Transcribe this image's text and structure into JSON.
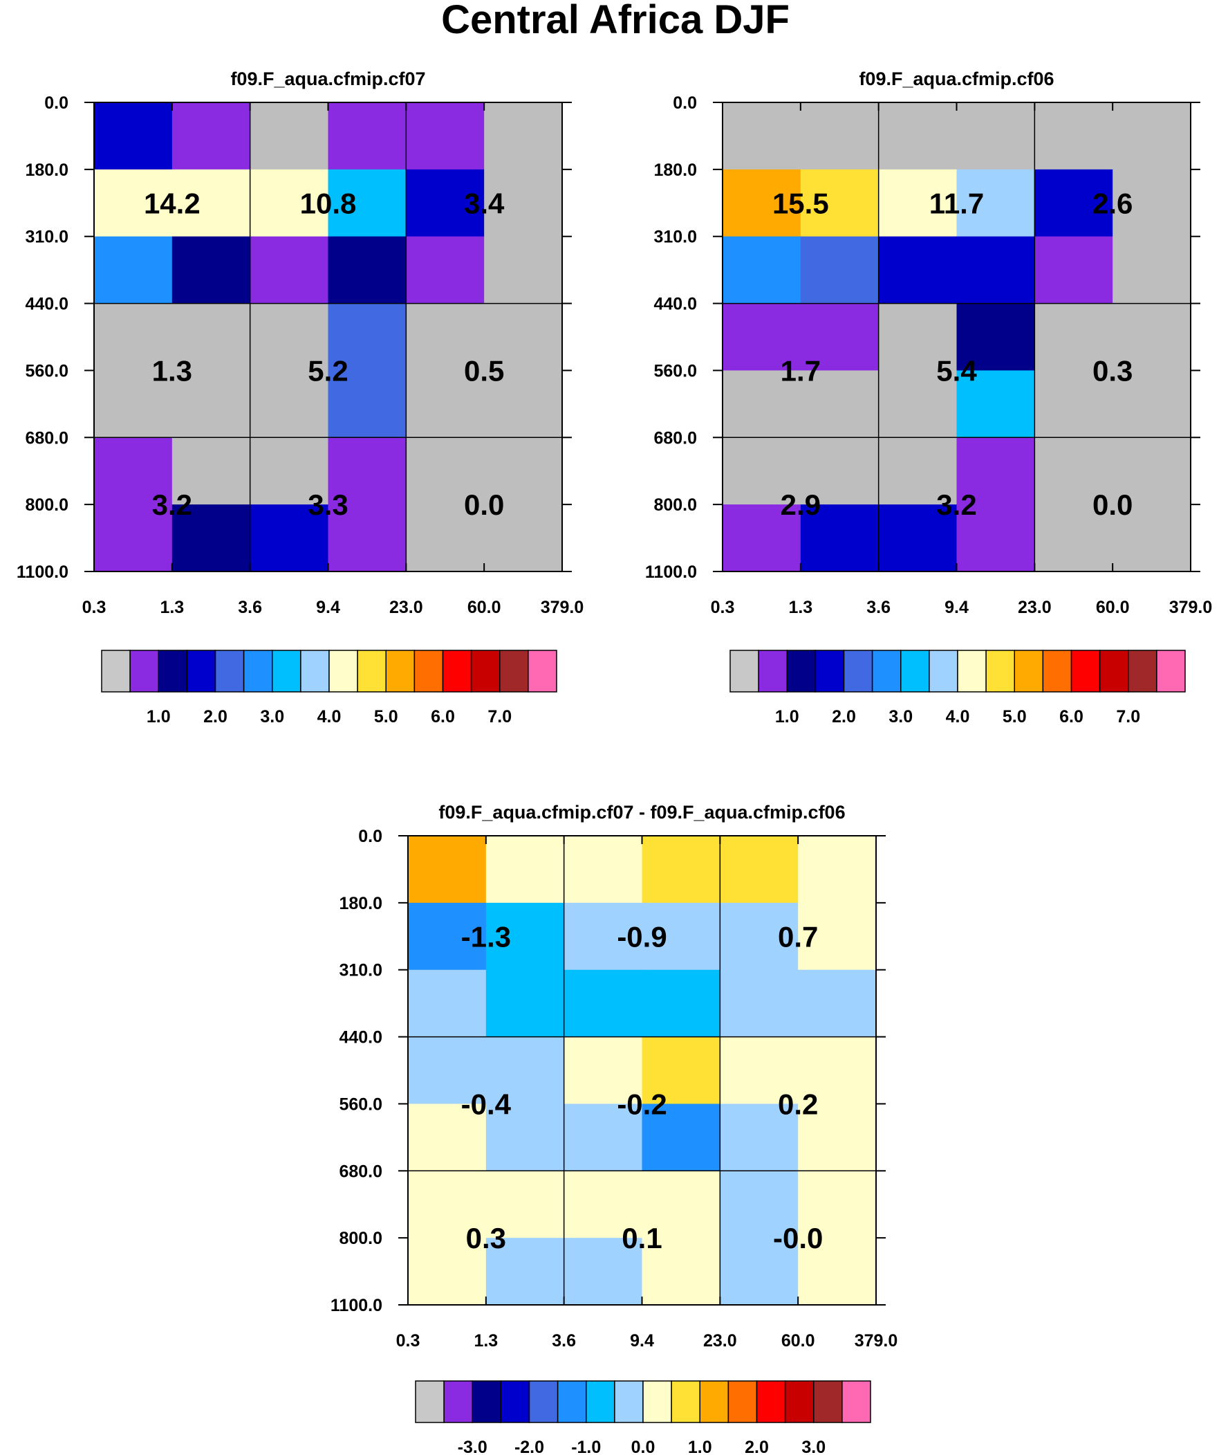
{
  "figure_title": "Central Africa DJF",
  "chart_data": [
    {
      "type": "heatmap",
      "title": "f09.F_aqua.cfmip.cf07",
      "x_ticks": [
        "0.3",
        "1.3",
        "3.6",
        "9.4",
        "23.0",
        "60.0",
        "379.0"
      ],
      "y_ticks": [
        "0.0",
        "180.0",
        "310.0",
        "440.0",
        "560.0",
        "680.0",
        "800.0",
        "1100.0"
      ],
      "cells": [
        [
          "#0000cd",
          "#8a2be2",
          "#bebebe",
          "#8a2be2",
          "#8a2be2",
          "#bebebe"
        ],
        [
          "#fffdca",
          "#fffdca",
          "#fffdca",
          "#00bfff",
          "#0000cd",
          "#bebebe"
        ],
        [
          "#1e90ff",
          "#00008b",
          "#8a2be2",
          "#00008b",
          "#8a2be2",
          "#bebebe"
        ],
        [
          "#bebebe",
          "#bebebe",
          "#bebebe",
          "#4169e1",
          "#bebebe",
          "#bebebe"
        ],
        [
          "#bebebe",
          "#bebebe",
          "#bebebe",
          "#4169e1",
          "#bebebe",
          "#bebebe"
        ],
        [
          "#8a2be2",
          "#bebebe",
          "#bebebe",
          "#8a2be2",
          "#bebebe",
          "#bebebe"
        ],
        [
          "#8a2be2",
          "#00008b",
          "#0000cd",
          "#8a2be2",
          "#bebebe",
          "#bebebe"
        ]
      ],
      "box_values": [
        [
          "14.2",
          "10.8",
          "3.4"
        ],
        [
          "1.3",
          "5.2",
          "0.5"
        ],
        [
          "3.2",
          "3.3",
          "0.0"
        ]
      ],
      "colorbar": {
        "colors": [
          "#c8c8c8",
          "#8a2be2",
          "#00008b",
          "#0000cd",
          "#4169e1",
          "#1e90ff",
          "#00bfff",
          "#a0d2ff",
          "#fffdca",
          "#ffe135",
          "#ffaa00",
          "#ff6e00",
          "#ff0000",
          "#c80000",
          "#a02828",
          "#ff69b4"
        ],
        "labels": [
          "1.0",
          "2.0",
          "3.0",
          "4.0",
          "5.0",
          "6.0",
          "7.0"
        ]
      }
    },
    {
      "type": "heatmap",
      "title": "f09.F_aqua.cfmip.cf06",
      "x_ticks": [
        "0.3",
        "1.3",
        "3.6",
        "9.4",
        "23.0",
        "60.0",
        "379.0"
      ],
      "y_ticks": [
        "0.0",
        "180.0",
        "310.0",
        "440.0",
        "560.0",
        "680.0",
        "800.0",
        "1100.0"
      ],
      "cells": [
        [
          "#bebebe",
          "#bebebe",
          "#bebebe",
          "#bebebe",
          "#bebebe",
          "#bebebe"
        ],
        [
          "#ffaa00",
          "#ffe135",
          "#fffdca",
          "#a0d2ff",
          "#0000cd",
          "#bebebe"
        ],
        [
          "#1e90ff",
          "#4169e1",
          "#0000cd",
          "#0000cd",
          "#8a2be2",
          "#bebebe"
        ],
        [
          "#8a2be2",
          "#8a2be2",
          "#bebebe",
          "#00008b",
          "#bebebe",
          "#bebebe"
        ],
        [
          "#bebebe",
          "#bebebe",
          "#bebebe",
          "#00bfff",
          "#bebebe",
          "#bebebe"
        ],
        [
          "#bebebe",
          "#bebebe",
          "#bebebe",
          "#8a2be2",
          "#bebebe",
          "#bebebe"
        ],
        [
          "#8a2be2",
          "#0000cd",
          "#0000cd",
          "#8a2be2",
          "#bebebe",
          "#bebebe"
        ]
      ],
      "box_values": [
        [
          "15.5",
          "11.7",
          "2.6"
        ],
        [
          "1.7",
          "5.4",
          "0.3"
        ],
        [
          "2.9",
          "3.2",
          "0.0"
        ]
      ],
      "colorbar": {
        "colors": [
          "#c8c8c8",
          "#8a2be2",
          "#00008b",
          "#0000cd",
          "#4169e1",
          "#1e90ff",
          "#00bfff",
          "#a0d2ff",
          "#fffdca",
          "#ffe135",
          "#ffaa00",
          "#ff6e00",
          "#ff0000",
          "#c80000",
          "#a02828",
          "#ff69b4"
        ],
        "labels": [
          "1.0",
          "2.0",
          "3.0",
          "4.0",
          "5.0",
          "6.0",
          "7.0"
        ]
      }
    },
    {
      "type": "heatmap",
      "title": "f09.F_aqua.cfmip.cf07 - f09.F_aqua.cfmip.cf06",
      "x_ticks": [
        "0.3",
        "1.3",
        "3.6",
        "9.4",
        "23.0",
        "60.0",
        "379.0"
      ],
      "y_ticks": [
        "0.0",
        "180.0",
        "310.0",
        "440.0",
        "560.0",
        "680.0",
        "800.0",
        "1100.0"
      ],
      "cells": [
        [
          "#ffaa00",
          "#fffdca",
          "#fffdca",
          "#ffe135",
          "#ffe135",
          "#fffdca"
        ],
        [
          "#1e90ff",
          "#00bfff",
          "#a0d2ff",
          "#a0d2ff",
          "#a0d2ff",
          "#fffdca"
        ],
        [
          "#a0d2ff",
          "#00bfff",
          "#00bfff",
          "#00bfff",
          "#a0d2ff",
          "#a0d2ff"
        ],
        [
          "#a0d2ff",
          "#a0d2ff",
          "#fffdca",
          "#ffe135",
          "#fffdca",
          "#fffdca"
        ],
        [
          "#fffdca",
          "#a0d2ff",
          "#a0d2ff",
          "#1e90ff",
          "#a0d2ff",
          "#fffdca"
        ],
        [
          "#fffdca",
          "#fffdca",
          "#fffdca",
          "#fffdca",
          "#a0d2ff",
          "#fffdca"
        ],
        [
          "#fffdca",
          "#a0d2ff",
          "#a0d2ff",
          "#fffdca",
          "#a0d2ff",
          "#fffdca"
        ]
      ],
      "box_values": [
        [
          "-1.3",
          "-0.9",
          "0.7"
        ],
        [
          "-0.4",
          "-0.2",
          "0.2"
        ],
        [
          "0.3",
          "0.1",
          "-0.0"
        ]
      ],
      "colorbar": {
        "colors": [
          "#c8c8c8",
          "#8a2be2",
          "#00008b",
          "#0000cd",
          "#4169e1",
          "#1e90ff",
          "#00bfff",
          "#a0d2ff",
          "#fffdca",
          "#ffe135",
          "#ffaa00",
          "#ff6e00",
          "#ff0000",
          "#c80000",
          "#a02828",
          "#ff69b4"
        ],
        "labels": [
          "-3.0",
          "-2.0",
          "-1.0",
          "0.0",
          "1.0",
          "2.0",
          "3.0"
        ]
      }
    }
  ]
}
